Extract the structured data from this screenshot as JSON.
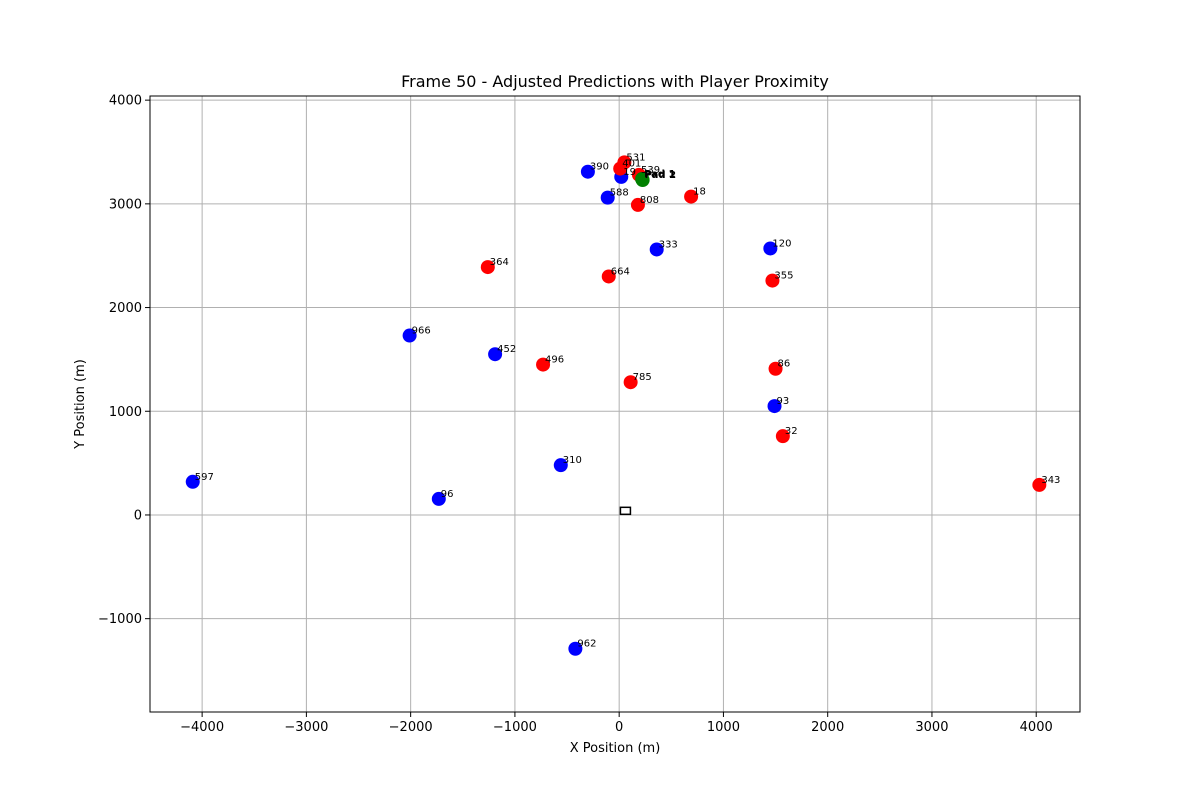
{
  "chart_data": {
    "type": "scatter",
    "title": "Frame 50 - Adjusted Predictions with Player Proximity",
    "xlabel": "X Position (m)",
    "ylabel": "Y Position (m)",
    "xlim": [
      -4500,
      4420
    ],
    "ylim": [
      -1900,
      4040
    ],
    "xticks": [
      -4000,
      -3000,
      -2000,
      -1000,
      0,
      1000,
      2000,
      3000,
      4000
    ],
    "xtick_labels": [
      "−4000",
      "−3000",
      "−2000",
      "−1000",
      "0",
      "1000",
      "2000",
      "3000",
      "4000"
    ],
    "yticks": [
      -1000,
      0,
      1000,
      2000,
      3000,
      4000
    ],
    "ytick_labels": [
      "−1000",
      "0",
      "1000",
      "2000",
      "3000",
      "4000"
    ],
    "grid": true,
    "colors": {
      "blue": "#0000ff",
      "red": "#ff0000",
      "green": "#008000"
    },
    "points": [
      {
        "x": -4090,
        "y": 320,
        "label": "597",
        "color": "blue"
      },
      {
        "x": -1730,
        "y": 155,
        "label": "96",
        "color": "blue"
      },
      {
        "x": -2010,
        "y": 1730,
        "label": "966",
        "color": "blue"
      },
      {
        "x": -1190,
        "y": 1550,
        "label": "452",
        "color": "blue"
      },
      {
        "x": -560,
        "y": 480,
        "label": "310",
        "color": "blue"
      },
      {
        "x": -420,
        "y": -1290,
        "label": "962",
        "color": "blue"
      },
      {
        "x": -300,
        "y": 3310,
        "label": "390",
        "color": "blue"
      },
      {
        "x": -110,
        "y": 3060,
        "label": "588",
        "color": "blue"
      },
      {
        "x": 360,
        "y": 2560,
        "label": "333",
        "color": "blue"
      },
      {
        "x": 20,
        "y": 3260,
        "label": "19",
        "color": "blue"
      },
      {
        "x": 1450,
        "y": 2570,
        "label": "120",
        "color": "blue"
      },
      {
        "x": 1490,
        "y": 1050,
        "label": "93",
        "color": "blue"
      },
      {
        "x": -1260,
        "y": 2390,
        "label": "364",
        "color": "red"
      },
      {
        "x": -100,
        "y": 2300,
        "label": "664",
        "color": "red"
      },
      {
        "x": -730,
        "y": 1450,
        "label": "496",
        "color": "red"
      },
      {
        "x": 110,
        "y": 1280,
        "label": "785",
        "color": "red"
      },
      {
        "x": 50,
        "y": 3400,
        "label": "531",
        "color": "red"
      },
      {
        "x": 10,
        "y": 3340,
        "label": "401",
        "color": "red"
      },
      {
        "x": 190,
        "y": 3280,
        "label": "539",
        "color": "red"
      },
      {
        "x": 180,
        "y": 2990,
        "label": "808",
        "color": "red"
      },
      {
        "x": 690,
        "y": 3070,
        "label": "18",
        "color": "red"
      },
      {
        "x": 1470,
        "y": 2260,
        "label": "355",
        "color": "red"
      },
      {
        "x": 1500,
        "y": 1410,
        "label": "86",
        "color": "red"
      },
      {
        "x": 1570,
        "y": 760,
        "label": "32",
        "color": "red"
      },
      {
        "x": 4030,
        "y": 290,
        "label": "343",
        "color": "red"
      },
      {
        "x": 220,
        "y": 3240,
        "label": "Pad 1",
        "color": "green"
      },
      {
        "x": 225,
        "y": 3230,
        "label": "Pad 2",
        "color": "green"
      }
    ],
    "marker": {
      "type": "square",
      "x": 60,
      "y": 40
    }
  }
}
